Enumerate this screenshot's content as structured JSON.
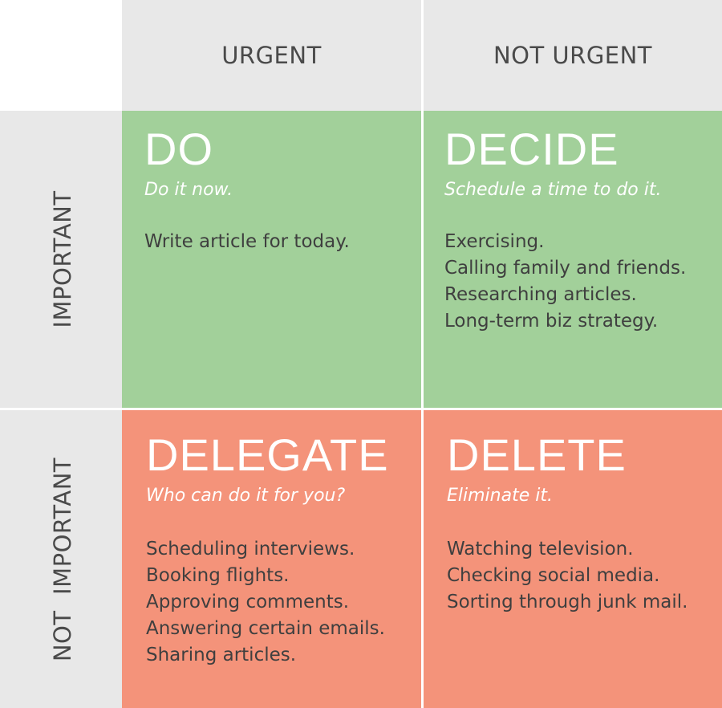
{
  "columns": {
    "urgent": "URGENT",
    "not_urgent": "NOT URGENT"
  },
  "rows": {
    "important": "IMPORTANT",
    "not_important": "NOT  IMPORTANT"
  },
  "quadrants": {
    "do": {
      "title": "DO",
      "subtitle": "Do it now.",
      "items": [
        "Write article for today."
      ]
    },
    "decide": {
      "title": "DECIDE",
      "subtitle": "Schedule a time to do it.",
      "items": [
        "Exercising.",
        "Calling family and friends.",
        "Researching articles.",
        "Long-term biz strategy."
      ]
    },
    "delegate": {
      "title": "DELEGATE",
      "subtitle": "Who can do it for you?",
      "items": [
        "Scheduling interviews.",
        "Booking flights.",
        "Approving comments.",
        "Answering certain emails.",
        "Sharing articles."
      ]
    },
    "delete": {
      "title": "DELETE",
      "subtitle": "Eliminate it.",
      "items": [
        "Watching television.",
        "Checking social media.",
        "Sorting through junk mail."
      ]
    }
  },
  "colors": {
    "header_bg": "#e8e8e8",
    "green": "#a2d09a",
    "orange": "#f4937a",
    "title_text": "#ffffff",
    "body_text": "#3f3f3f"
  }
}
